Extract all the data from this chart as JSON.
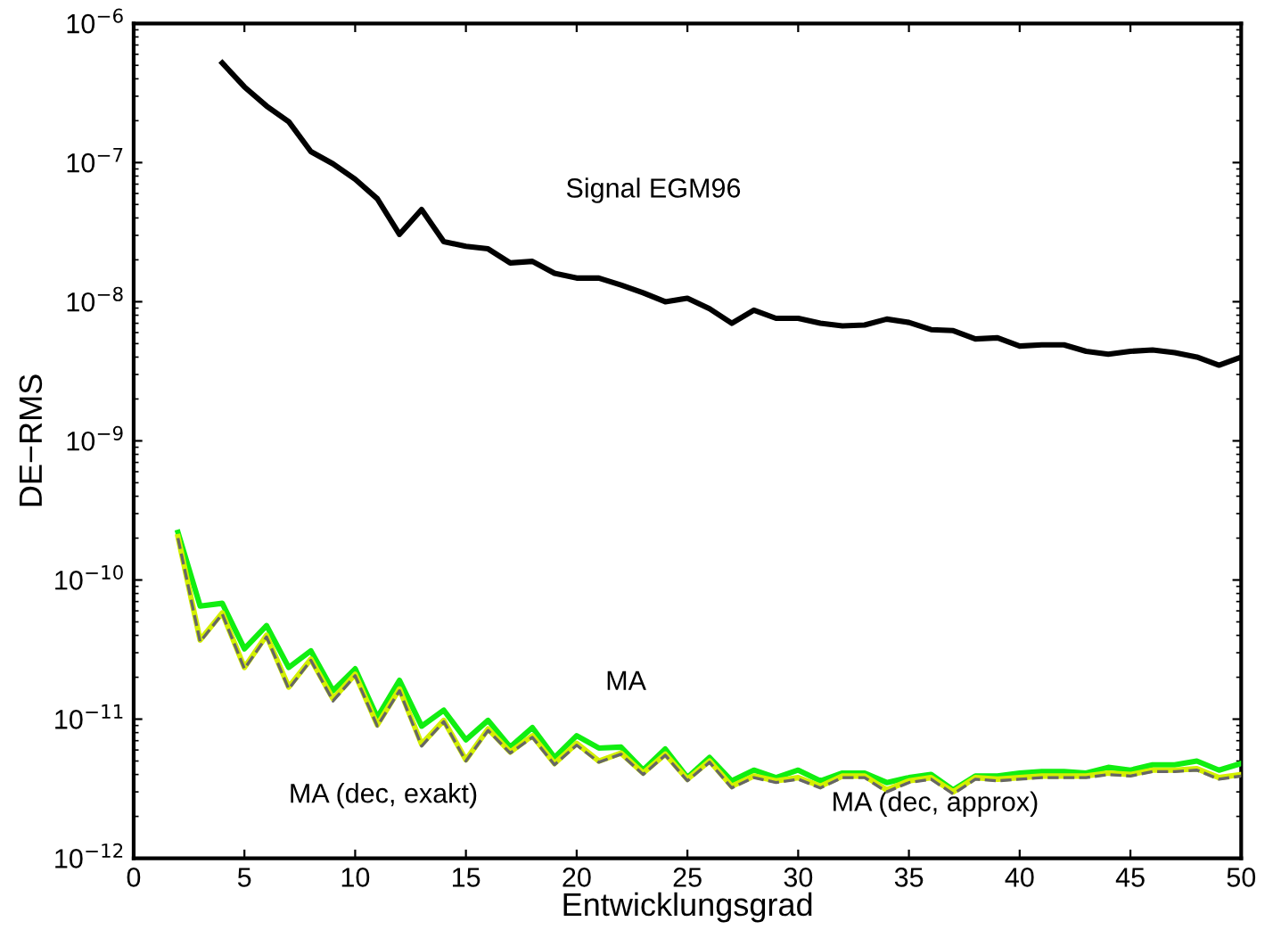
{
  "chart_data": {
    "type": "line",
    "xlabel": "Entwicklungsgrad",
    "ylabel": "DE−RMS",
    "log": "y",
    "xlim": [
      0,
      50
    ],
    "xticks": [
      0,
      5,
      10,
      15,
      20,
      25,
      30,
      35,
      40,
      45,
      50
    ],
    "ylim": [
      1e-12,
      1e-06
    ],
    "yticks": [
      {
        "value": 1e-12,
        "label": "10$^{−12}$"
      },
      {
        "value": 1e-11,
        "label": "10$^{−11}$"
      },
      {
        "value": 1e-10,
        "label": "10$^{−10}$"
      },
      {
        "value": 1e-09,
        "label": "10$^{−9}$"
      },
      {
        "value": 1e-08,
        "label": "10$^{−8}$"
      },
      {
        "value": 1e-07,
        "label": "10$^{−7}$"
      },
      {
        "value": 1e-06,
        "label": "10$^{−6}$"
      }
    ],
    "grid": false,
    "legend": false,
    "marker": "none",
    "series": [
      {
        "color": "#000000",
        "line_style": "solid",
        "x": [
          4,
          5,
          6,
          7,
          8,
          9,
          10,
          11,
          12,
          13,
          14,
          15,
          16,
          17,
          18,
          19,
          20,
          21,
          22,
          23,
          24,
          25,
          26,
          27,
          28,
          29,
          30,
          31,
          32,
          33,
          34,
          35,
          36,
          37,
          38,
          39,
          40,
          41,
          42,
          43,
          44,
          45,
          46,
          47,
          48,
          49,
          50
        ],
        "values": [
          5.2e-07,
          3.5e-07,
          2.55e-07,
          1.97e-07,
          1.2e-07,
          9.8e-08,
          7.6e-08,
          5.5e-08,
          3.05e-08,
          4.6e-08,
          2.7e-08,
          2.5e-08,
          2.4e-08,
          1.9e-08,
          1.95e-08,
          1.6e-08,
          1.48e-08,
          1.48e-08,
          1.32e-08,
          1.16e-08,
          1e-08,
          1.06e-08,
          8.9e-09,
          7e-09,
          8.7e-09,
          7.6e-09,
          7.6e-09,
          7e-09,
          6.7e-09,
          6.8e-09,
          7.5e-09,
          7.1e-09,
          6.3e-09,
          6.2e-09,
          5.4e-09,
          5.5e-09,
          4.8e-09,
          4.9e-09,
          4.9e-09,
          4.4e-09,
          4.2e-09,
          4.4e-09,
          4.5e-09,
          4.3e-09,
          4e-09,
          3.5e-09,
          4e-09
        ]
      },
      {
        "color": "#11ee11",
        "line_style": "solid",
        "x": [
          2,
          3,
          4,
          5,
          6,
          7,
          8,
          9,
          10,
          11,
          12,
          13,
          14,
          15,
          16,
          17,
          18,
          19,
          20,
          21,
          22,
          23,
          24,
          25,
          26,
          27,
          28,
          29,
          30,
          31,
          32,
          33,
          34,
          35,
          36,
          37,
          38,
          39,
          40,
          41,
          42,
          43,
          44,
          45,
          46,
          47,
          48,
          49,
          50
        ],
        "values": [
          2.2e-10,
          6.5e-11,
          6.8e-11,
          3.2e-11,
          4.7e-11,
          2.35e-11,
          3.1e-11,
          1.6e-11,
          2.3e-11,
          1.03e-11,
          1.9e-11,
          8.9e-12,
          1.16e-11,
          7.1e-12,
          9.8e-12,
          6.3e-12,
          8.7e-12,
          5.3e-12,
          7.6e-12,
          6.2e-12,
          6.3e-12,
          4.3e-12,
          6.1e-12,
          3.8e-12,
          5.3e-12,
          3.6e-12,
          4.3e-12,
          3.8e-12,
          4.3e-12,
          3.6e-12,
          4.1e-12,
          4.1e-12,
          3.5e-12,
          3.8e-12,
          4e-12,
          3.1e-12,
          3.9e-12,
          3.9e-12,
          4.1e-12,
          4.2e-12,
          4.2e-12,
          4.1e-12,
          4.5e-12,
          4.3e-12,
          4.7e-12,
          4.7e-12,
          5e-12,
          4.3e-12,
          4.8e-12
        ]
      },
      {
        "color": "#d4f000",
        "line_style": "solid",
        "x": [
          2,
          3,
          4,
          5,
          6,
          7,
          8,
          9,
          10,
          11,
          12,
          13,
          14,
          15,
          16,
          17,
          18,
          19,
          20,
          21,
          22,
          23,
          24,
          25,
          26,
          27,
          28,
          29,
          30,
          31,
          32,
          33,
          34,
          35,
          36,
          37,
          38,
          39,
          40,
          41,
          42,
          43,
          44,
          45,
          46,
          47,
          48,
          49,
          50
        ],
        "values": [
          2.05e-10,
          3.7e-11,
          5.8e-11,
          2.35e-11,
          4e-11,
          1.7e-11,
          2.7e-11,
          1.4e-11,
          2.1e-11,
          9.1e-12,
          1.65e-11,
          6.6e-12,
          9.8e-12,
          5.1e-12,
          8.5e-12,
          5.8e-12,
          7.6e-12,
          4.8e-12,
          6.7e-12,
          5e-12,
          5.7e-12,
          4.1e-12,
          5.6e-12,
          3.7e-12,
          5e-12,
          3.3e-12,
          3.9e-12,
          3.6e-12,
          3.8e-12,
          3.3e-12,
          3.9e-12,
          3.9e-12,
          3.1e-12,
          3.6e-12,
          3.8e-12,
          3e-12,
          3.8e-12,
          3.7e-12,
          3.8e-12,
          3.9e-12,
          3.9e-12,
          3.9e-12,
          4.1e-12,
          4e-12,
          4.3e-12,
          4.3e-12,
          4.4e-12,
          3.8e-12,
          4e-12
        ]
      },
      {
        "color": "#666666",
        "line_style": "dashed",
        "x": [
          2,
          3,
          4,
          5,
          6,
          7,
          8,
          9,
          10,
          11,
          12,
          13,
          14,
          15,
          16,
          17,
          18,
          19,
          20,
          21,
          22,
          23,
          24,
          25,
          26,
          27,
          28,
          29,
          30,
          31,
          32,
          33,
          34,
          35,
          36,
          37,
          38,
          39,
          40,
          41,
          42,
          43,
          44,
          45,
          46,
          47,
          48,
          49,
          50
        ],
        "values": [
          2e-10,
          3.6e-11,
          5.7e-11,
          2.3e-11,
          3.9e-11,
          1.65e-11,
          2.65e-11,
          1.35e-11,
          2.05e-11,
          8.9e-12,
          1.6e-11,
          6.4e-12,
          9.6e-12,
          5e-12,
          8.3e-12,
          5.7e-12,
          7.4e-12,
          4.7e-12,
          6.5e-12,
          4.9e-12,
          5.6e-12,
          4e-12,
          5.5e-12,
          3.6e-12,
          4.9e-12,
          3.2e-12,
          3.8e-12,
          3.5e-12,
          3.7e-12,
          3.2e-12,
          3.8e-12,
          3.8e-12,
          3e-12,
          3.5e-12,
          3.7e-12,
          2.9e-12,
          3.7e-12,
          3.6e-12,
          3.7e-12,
          3.8e-12,
          3.8e-12,
          3.8e-12,
          4e-12,
          3.9e-12,
          4.2e-12,
          4.2e-12,
          4.3e-12,
          3.7e-12,
          3.9e-12
        ]
      }
    ],
    "annotations": [
      "Signal EGM96",
      "MA",
      "MA (dec, exakt)",
      "MA (dec, approx)"
    ]
  }
}
